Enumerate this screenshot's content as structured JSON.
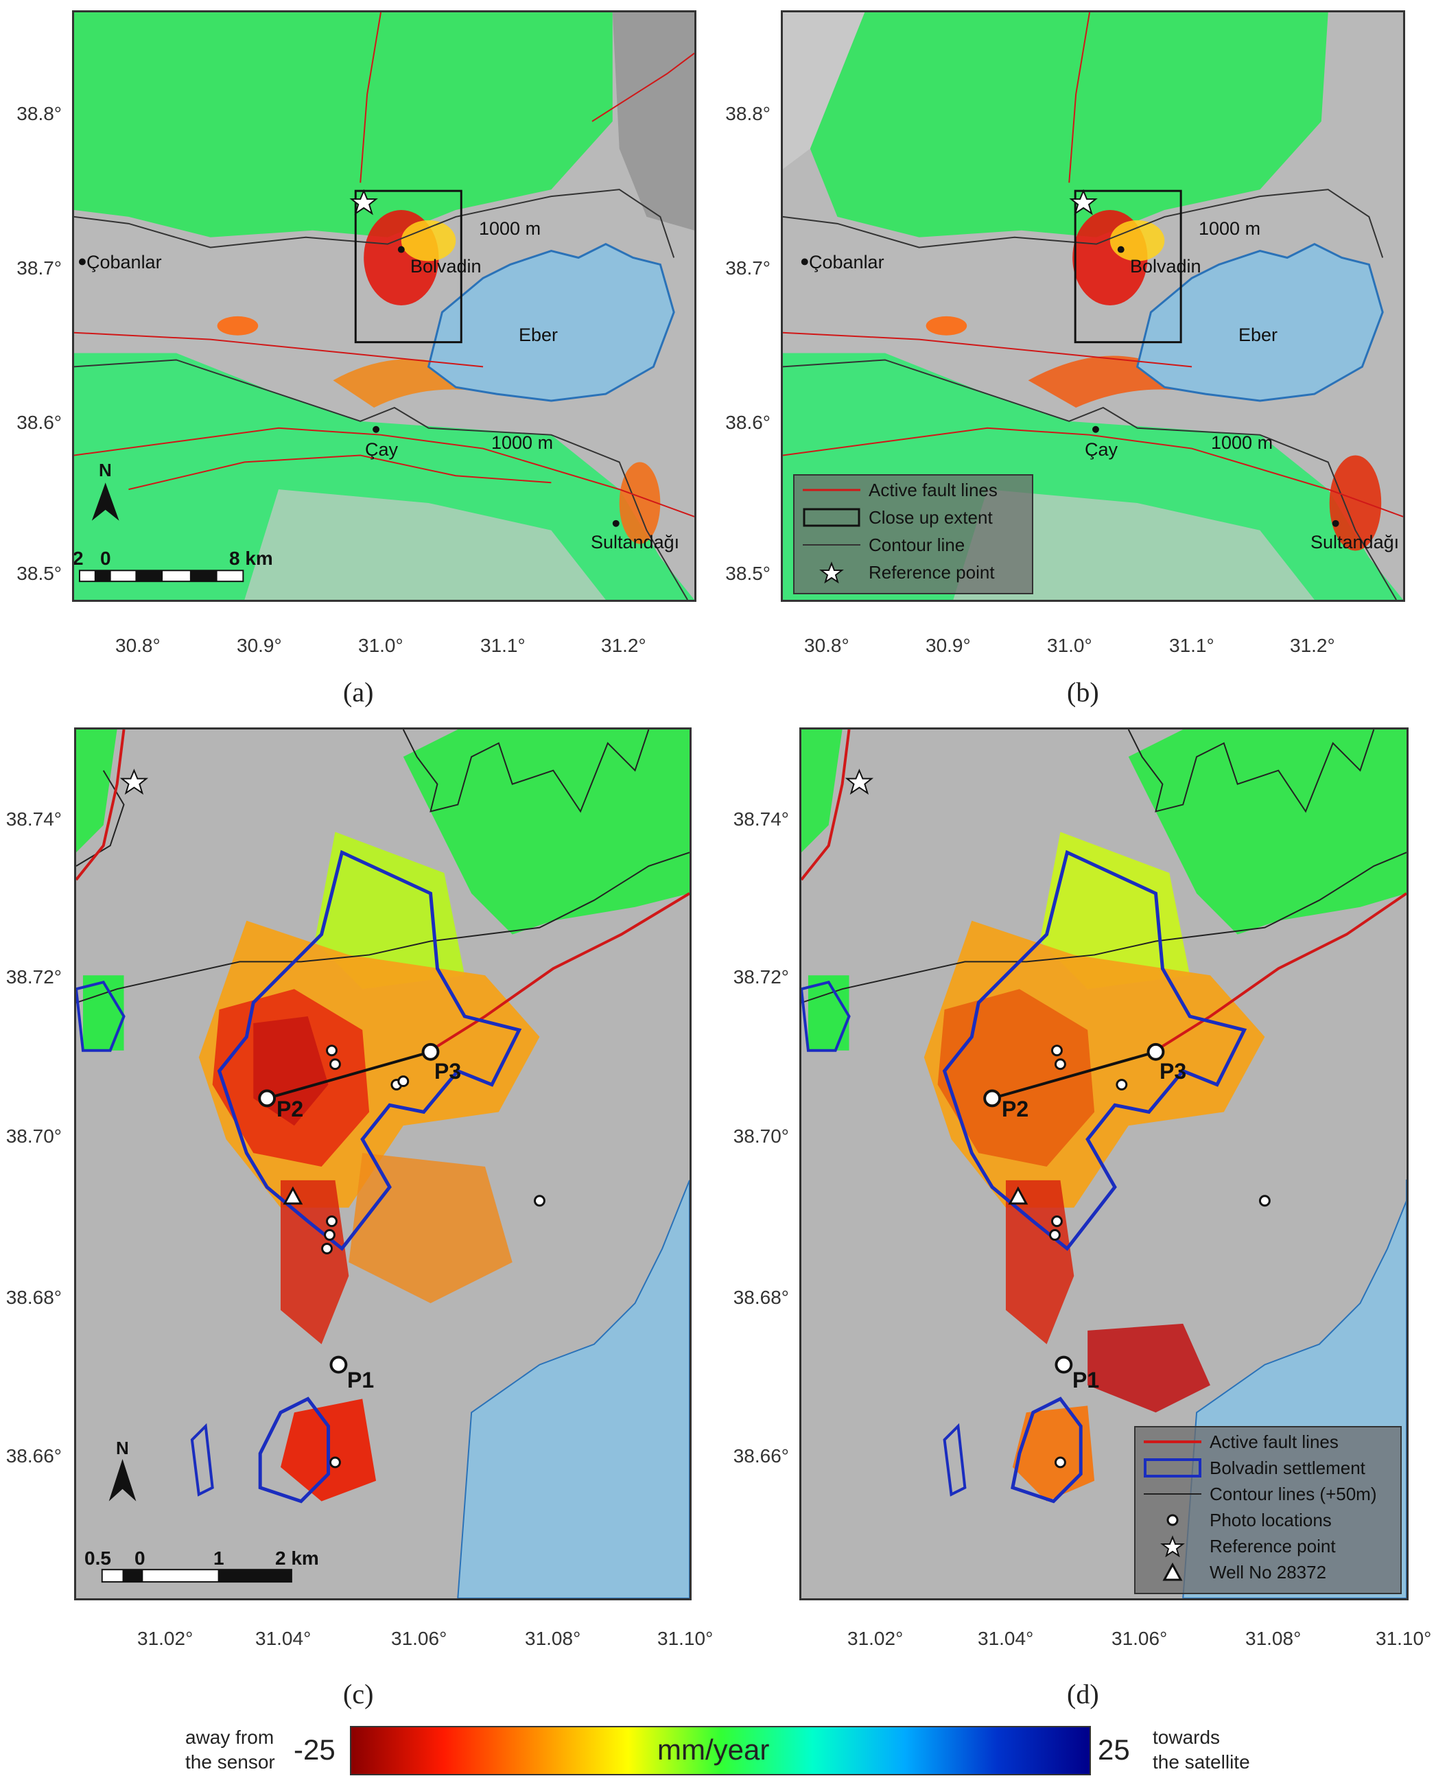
{
  "colors": {
    "lake": "#8fc0dd",
    "terrain": "#b9b9b9",
    "stable": "#28e85a",
    "subsidence": "#e21a0e",
    "fault": "#d01818",
    "settlement": "#1a2dbf",
    "contour": "#222222"
  },
  "panel_labels": [
    "(a)",
    "(b)",
    "(c)",
    "(d)"
  ],
  "top_maps": {
    "y_ticks": [
      "38.8°",
      "38.7°",
      "38.6°",
      "38.5°"
    ],
    "x_ticks": [
      "30.8°",
      "30.9°",
      "31.0°",
      "31.1°",
      "31.2°"
    ],
    "places": {
      "cobanlar": "Çobanlar",
      "bolvadin": "Bolvadin",
      "eber": "Eber",
      "cay": "Çay",
      "sultandagi": "Sultandağı",
      "contour_1": "1000 m",
      "contour_2": "1000 m"
    },
    "scale_bar": {
      "left": "2",
      "zero": "0",
      "right": "8 km"
    },
    "north_arrow": "N",
    "legend": [
      {
        "symbol": "fault-line",
        "label": "Active fault lines"
      },
      {
        "symbol": "box",
        "label": "Close up extent"
      },
      {
        "symbol": "contour-line",
        "label": "Contour line"
      },
      {
        "symbol": "star",
        "label": "Reference point"
      }
    ]
  },
  "bottom_maps": {
    "y_ticks": [
      "38.74°",
      "38.72°",
      "38.70°",
      "38.68°",
      "38.66°"
    ],
    "x_ticks": [
      "31.02°",
      "31.04°",
      "31.06°",
      "31.08°",
      "31.10°"
    ],
    "points": {
      "p1": "P1",
      "p2": "P2",
      "p3": "P3"
    },
    "scale_bar": {
      "left": "0.5",
      "zero": "0",
      "mid": "1",
      "right": "2 km"
    },
    "north_arrow": "N",
    "legend": [
      {
        "symbol": "fault-line",
        "label": "Active fault lines"
      },
      {
        "symbol": "settlement",
        "label": "Bolvadin settlement"
      },
      {
        "symbol": "contour-line",
        "label": "Contour lines (+50m)"
      },
      {
        "symbol": "dot",
        "label": "Photo locations"
      },
      {
        "symbol": "star",
        "label": "Reference point"
      },
      {
        "symbol": "triangle",
        "label": "Well No 28372"
      }
    ]
  },
  "colorbar": {
    "min": "-25",
    "max": "25",
    "unit": "mm/year",
    "left_label_1": "away from",
    "left_label_2": "the sensor",
    "right_label_1": "towards",
    "right_label_2": "the satellite",
    "stops": [
      "#8b0000",
      "#ff1a00",
      "#ff8c00",
      "#ffff00",
      "#33ff33",
      "#00ffcc",
      "#00aaff",
      "#0033cc",
      "#00008b"
    ]
  }
}
